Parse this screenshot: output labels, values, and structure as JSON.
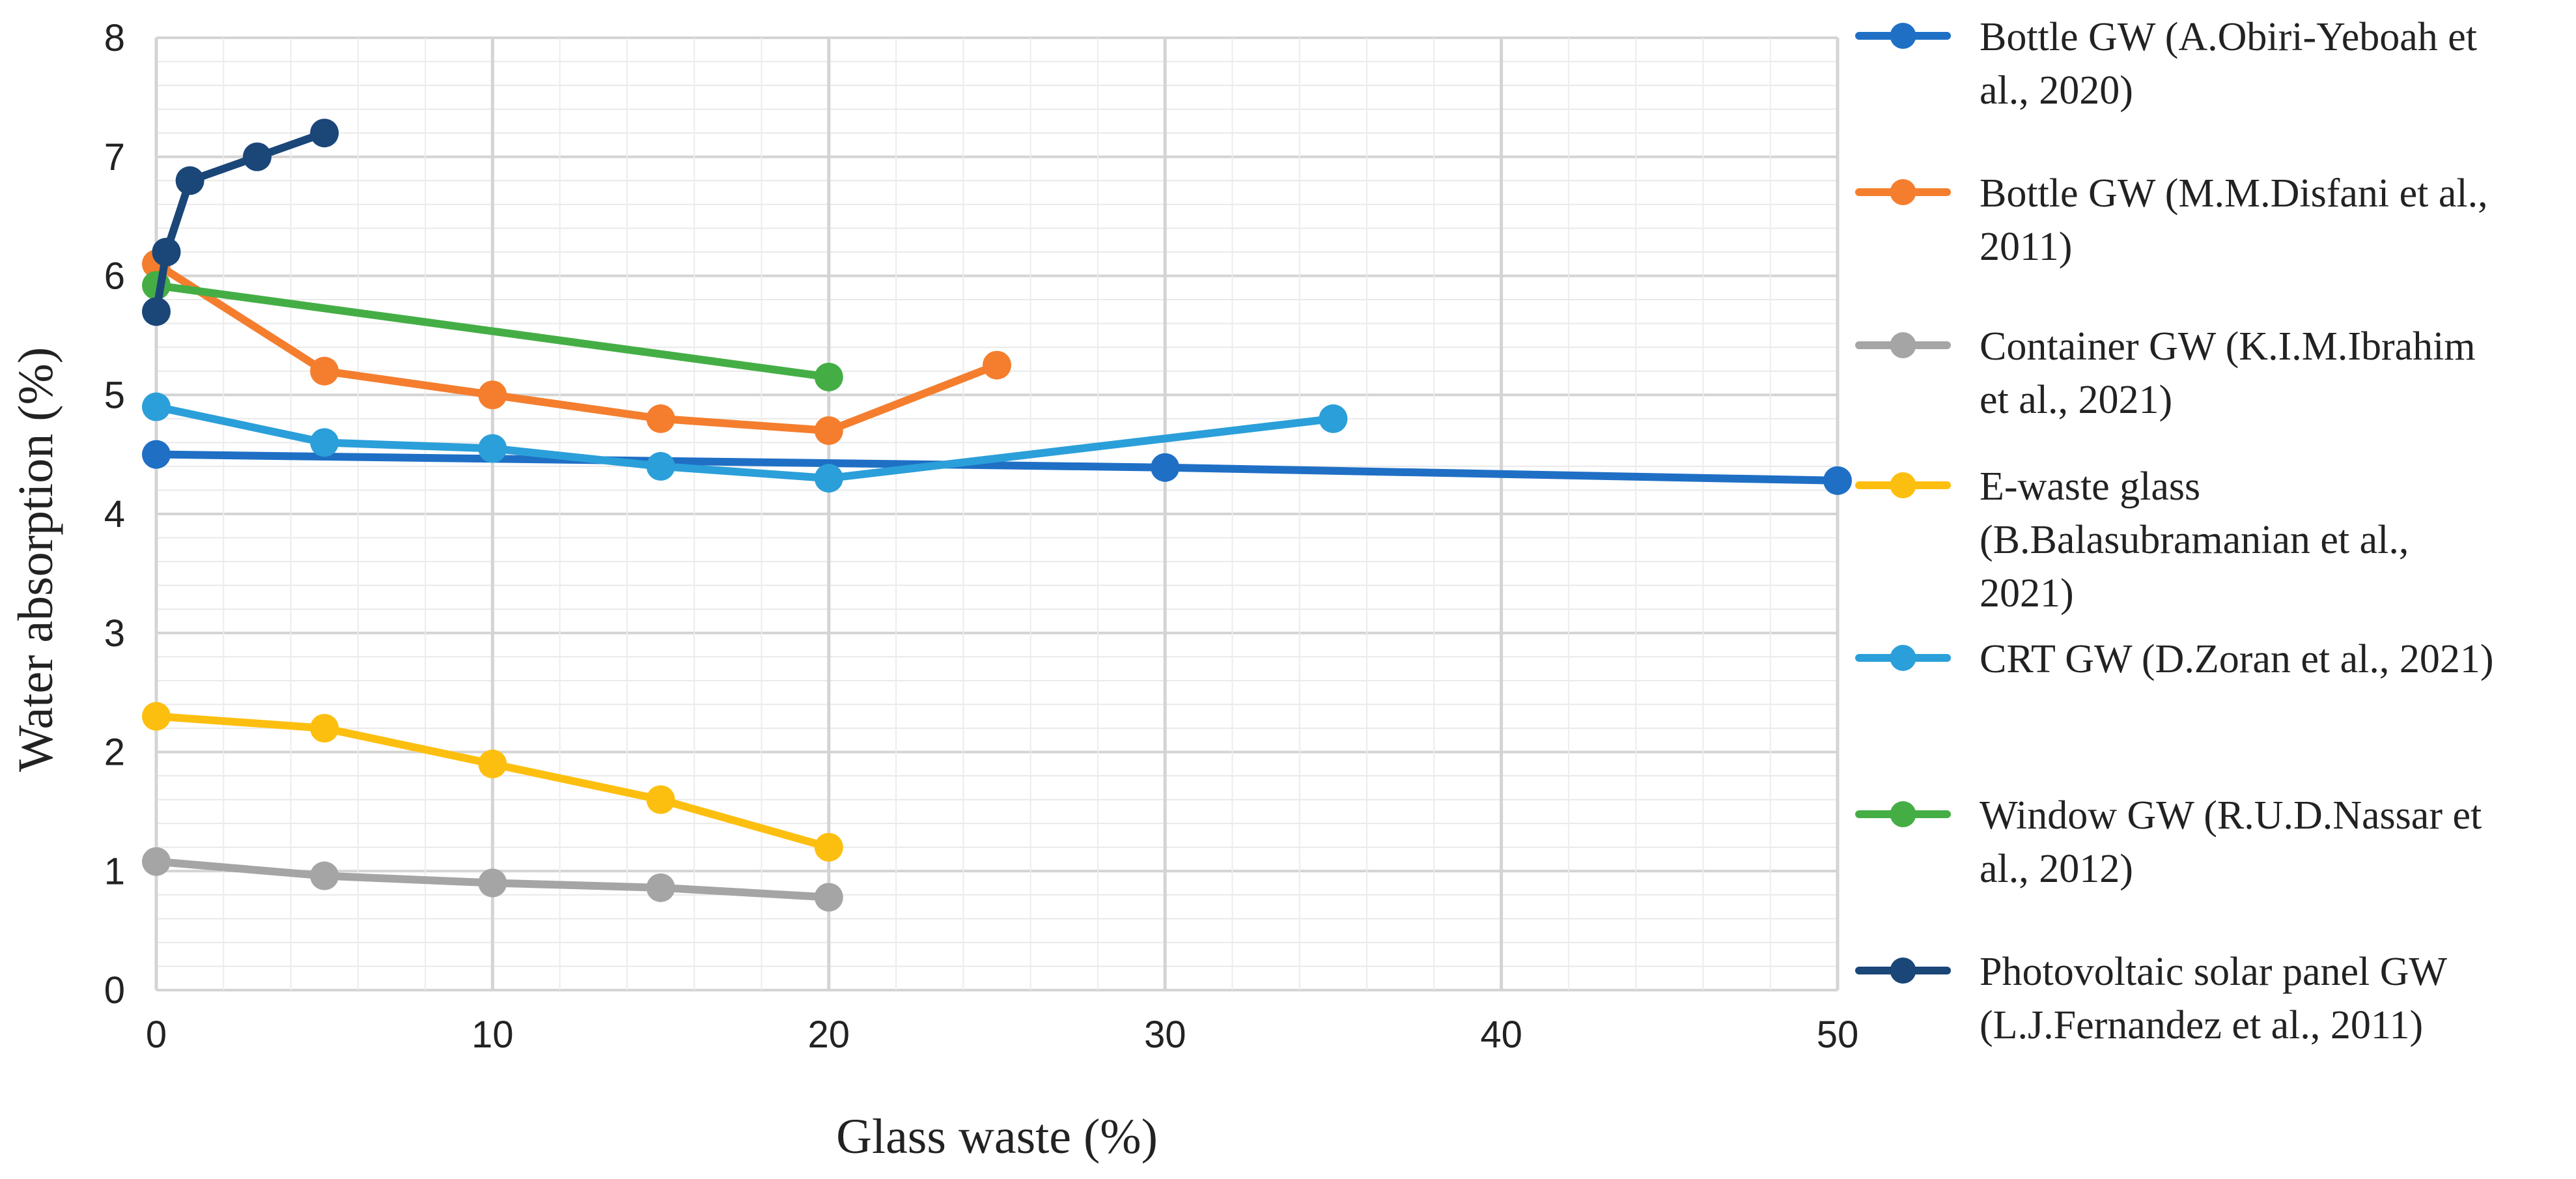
{
  "chart_data": {
    "type": "line",
    "title": "",
    "xlabel": "Glass waste (%)",
    "ylabel": "Water absorption (%)",
    "xlim": [
      0,
      50
    ],
    "ylim": [
      0,
      8
    ],
    "xticks": [
      0,
      10,
      20,
      30,
      40,
      50
    ],
    "yticks": [
      0,
      1,
      2,
      3,
      4,
      5,
      6,
      7,
      8
    ],
    "xtick_labels": [
      "0",
      "10",
      "20",
      "30",
      "40",
      "50"
    ],
    "ytick_labels": [
      "0",
      "1",
      "2",
      "3",
      "4",
      "5",
      "6",
      "7",
      "8"
    ],
    "grid": true,
    "legend_position": "right",
    "series": [
      {
        "name": "Bottle GW (A.Obiri-Yeboah et al., 2020)",
        "legend_lines": [
          "Bottle GW (A.Obiri-Yeboah et",
          "al., 2020)"
        ],
        "color": "#1f6fc5",
        "x": [
          0,
          30,
          50
        ],
        "y": [
          4.5,
          4.39,
          4.28
        ]
      },
      {
        "name": "Bottle GW (M.M.Disfani et al., 2011)",
        "legend_lines": [
          "Bottle GW (M.M.Disfani et al.,",
          "2011)"
        ],
        "color": "#f47e2e",
        "x": [
          0,
          5,
          10,
          15,
          20,
          25
        ],
        "y": [
          6.1,
          5.2,
          5.0,
          4.8,
          4.7,
          5.25
        ]
      },
      {
        "name": "Container GW (K.I.M.Ibrahim et al., 2021)",
        "legend_lines": [
          "Container GW (K.I.M.Ibrahim",
          "et al., 2021)"
        ],
        "color": "#a5a5a5",
        "x": [
          0,
          5,
          10,
          15,
          20
        ],
        "y": [
          1.08,
          0.96,
          0.9,
          0.86,
          0.78
        ]
      },
      {
        "name": "E-waste glass (B.Balasubramanian et al., 2021)",
        "legend_lines": [
          "E-waste glass",
          "(B.Balasubramanian et al.,",
          "2021)"
        ],
        "color": "#fdbf0f",
        "x": [
          0,
          5,
          10,
          15,
          20
        ],
        "y": [
          2.3,
          2.2,
          1.9,
          1.6,
          1.2
        ]
      },
      {
        "name": "CRT GW (D.Zoran et al., 2021)",
        "legend_lines": [
          "CRT GW (D.Zoran et al., 2021)"
        ],
        "color": "#2b9fd9",
        "x": [
          0,
          5,
          10,
          15,
          20,
          35
        ],
        "y": [
          4.9,
          4.6,
          4.55,
          4.4,
          4.3,
          4.8
        ]
      },
      {
        "name": "Window GW (R.U.D.Nassar et al., 2012)",
        "legend_lines": [
          "Window GW (R.U.D.Nassar et",
          "al., 2012)"
        ],
        "color": "#44ae45",
        "x": [
          0,
          20
        ],
        "y": [
          5.92,
          5.15
        ]
      },
      {
        "name": "Photovoltaic solar panel GW (L.J.Fernandez et al., 2011)",
        "legend_lines": [
          "Photovoltaic solar panel GW",
          "(L.J.Fernandez et al., 2011)"
        ],
        "color": "#1a4678",
        "x": [
          0,
          0.3,
          1,
          3,
          5
        ],
        "y": [
          5.7,
          6.2,
          6.8,
          7.0,
          7.2
        ]
      }
    ]
  }
}
